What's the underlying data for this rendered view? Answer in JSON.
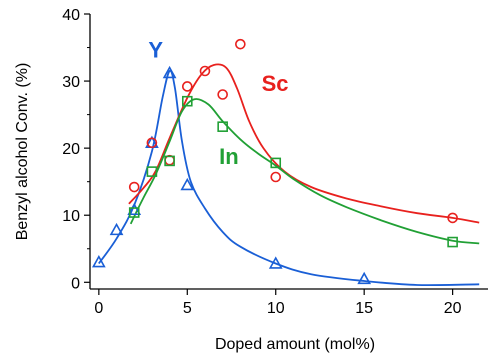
{
  "chart_data": {
    "type": "scatter",
    "title": "",
    "xlabel": "Doped amount (mol%)",
    "ylabel": "Benzyl alcohol Conv. (%)",
    "xlim": [
      -0.5,
      22
    ],
    "ylim": [
      -1,
      40
    ],
    "x_ticks": [
      0,
      5,
      10,
      15,
      20
    ],
    "y_ticks": [
      0,
      10,
      20,
      30,
      40
    ],
    "x_tick_labels": [
      "0",
      "5",
      "10",
      "15",
      "20"
    ],
    "y_tick_labels": [
      "0",
      "10",
      "20",
      "30",
      "40"
    ],
    "grid": false,
    "legend": "inline labels",
    "series": [
      {
        "name": "Y",
        "color": "#1a5fd6",
        "marker": "triangle",
        "points": [
          [
            0,
            3.0
          ],
          [
            1,
            7.8
          ],
          [
            2,
            10.8
          ],
          [
            3,
            20.8
          ],
          [
            4,
            31.2
          ],
          [
            5,
            14.5
          ],
          [
            10,
            2.8
          ],
          [
            15,
            0.5
          ]
        ],
        "fit": [
          [
            0,
            2.8
          ],
          [
            1,
            6.5
          ],
          [
            2,
            11.5
          ],
          [
            3,
            19.5
          ],
          [
            3.6,
            27.5
          ],
          [
            4.0,
            31.5
          ],
          [
            4.3,
            29.0
          ],
          [
            4.7,
            21.0
          ],
          [
            5.2,
            15.0
          ],
          [
            6,
            11.0
          ],
          [
            7,
            7.5
          ],
          [
            8,
            5.3
          ],
          [
            10,
            2.8
          ],
          [
            12,
            1.2
          ],
          [
            15,
            0.2
          ],
          [
            18,
            -0.4
          ],
          [
            21.5,
            -0.3
          ]
        ]
      },
      {
        "name": "Sc",
        "color": "#e8211e",
        "marker": "circle",
        "points": [
          [
            2,
            14.2
          ],
          [
            3,
            20.8
          ],
          [
            4,
            18.2
          ],
          [
            5,
            29.2
          ],
          [
            6,
            31.5
          ],
          [
            7,
            28.0
          ],
          [
            8,
            35.5
          ],
          [
            10,
            15.7
          ],
          [
            20,
            9.6
          ]
        ],
        "fit": [
          [
            1.7,
            11.7
          ],
          [
            2.5,
            14.0
          ],
          [
            3.2,
            16.5
          ],
          [
            4,
            21.5
          ],
          [
            5,
            27.5
          ],
          [
            5.8,
            31.0
          ],
          [
            6.5,
            32.4
          ],
          [
            7.2,
            32.0
          ],
          [
            7.8,
            29.0
          ],
          [
            8.5,
            24.0
          ],
          [
            9.3,
            20.0
          ],
          [
            10.5,
            16.5
          ],
          [
            12,
            14.2
          ],
          [
            14,
            12.5
          ],
          [
            16,
            11.3
          ],
          [
            18,
            10.3
          ],
          [
            20,
            9.6
          ],
          [
            21.5,
            8.9
          ]
        ]
      },
      {
        "name": "In",
        "color": "#21a035",
        "marker": "square",
        "points": [
          [
            2,
            10.4
          ],
          [
            3,
            16.5
          ],
          [
            4,
            18.1
          ],
          [
            5,
            27.0
          ],
          [
            7,
            23.2
          ],
          [
            10,
            17.8
          ],
          [
            20,
            6.0
          ]
        ],
        "fit": [
          [
            1.8,
            8.7
          ],
          [
            2.5,
            12.5
          ],
          [
            3.2,
            16.0
          ],
          [
            4,
            21.0
          ],
          [
            4.7,
            25.5
          ],
          [
            5.4,
            27.3
          ],
          [
            6.2,
            26.5
          ],
          [
            7,
            24.0
          ],
          [
            8,
            21.3
          ],
          [
            9,
            19.2
          ],
          [
            10,
            17.4
          ],
          [
            11,
            15.4
          ],
          [
            12.5,
            13.0
          ],
          [
            14,
            11.2
          ],
          [
            16,
            9.2
          ],
          [
            18,
            7.5
          ],
          [
            20,
            6.2
          ],
          [
            21.5,
            5.8
          ]
        ]
      }
    ],
    "labels": [
      {
        "text": "Y",
        "x": 2.8,
        "y": 33.5
      },
      {
        "text": "Sc",
        "x": 9.2,
        "y": 28.5
      },
      {
        "text": "In",
        "x": 6.8,
        "y": 17.6
      }
    ]
  }
}
